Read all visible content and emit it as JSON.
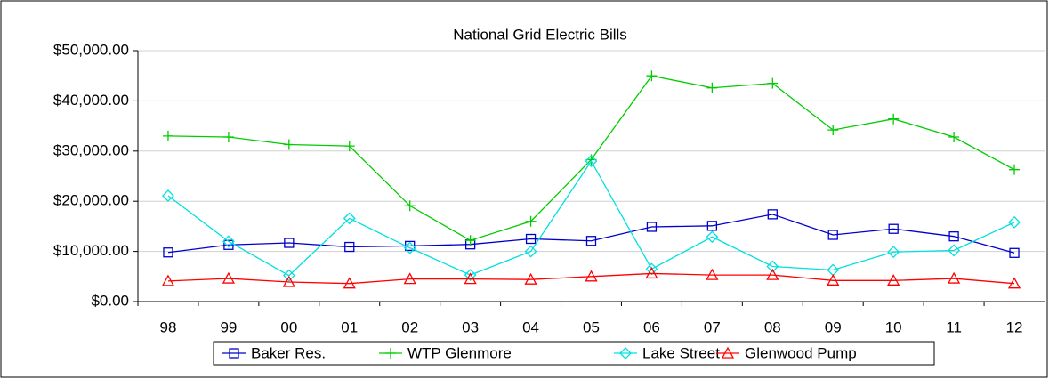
{
  "chart_data": {
    "type": "line",
    "title": "National Grid Electric Bills",
    "categories": [
      "98",
      "99",
      "00",
      "01",
      "02",
      "03",
      "04",
      "05",
      "06",
      "07",
      "08",
      "09",
      "10",
      "11",
      "12"
    ],
    "series": [
      {
        "name": "Baker Res.",
        "color": "#0000cc",
        "marker": "square",
        "values": [
          9800,
          11300,
          11700,
          10900,
          11100,
          11400,
          12500,
          12100,
          14900,
          15100,
          17400,
          13300,
          14500,
          13000,
          9700
        ]
      },
      {
        "name": "WTP Glenmore",
        "color": "#00cc00",
        "marker": "plus",
        "values": [
          33000,
          32800,
          31300,
          31000,
          19100,
          12200,
          16000,
          28300,
          45000,
          42600,
          43500,
          34200,
          36400,
          32800,
          26300
        ]
      },
      {
        "name": "Lake Street",
        "color": "#00e0e0",
        "marker": "diamond",
        "values": [
          21100,
          12000,
          5200,
          16600,
          10700,
          5300,
          10000,
          28000,
          6500,
          12900,
          7000,
          6300,
          9900,
          10200,
          15800
        ]
      },
      {
        "name": "Glenwood Pump",
        "color": "#ff0000",
        "marker": "triangle",
        "values": [
          4100,
          4600,
          3900,
          3600,
          4500,
          4500,
          4400,
          5000,
          5600,
          5300,
          5300,
          4200,
          4200,
          4600,
          3600
        ]
      }
    ],
    "ylim": [
      0,
      50000
    ],
    "yticks": [
      {
        "value": 0,
        "label": "$0.00"
      },
      {
        "value": 10000,
        "label": "$10,000.00"
      },
      {
        "value": 20000,
        "label": "$20,000.00"
      },
      {
        "value": 30000,
        "label": "$30,000.00"
      },
      {
        "value": 40000,
        "label": "$40,000.00"
      },
      {
        "value": 50000,
        "label": "$50,000.00"
      }
    ],
    "grid": true,
    "legend": "bottom"
  }
}
